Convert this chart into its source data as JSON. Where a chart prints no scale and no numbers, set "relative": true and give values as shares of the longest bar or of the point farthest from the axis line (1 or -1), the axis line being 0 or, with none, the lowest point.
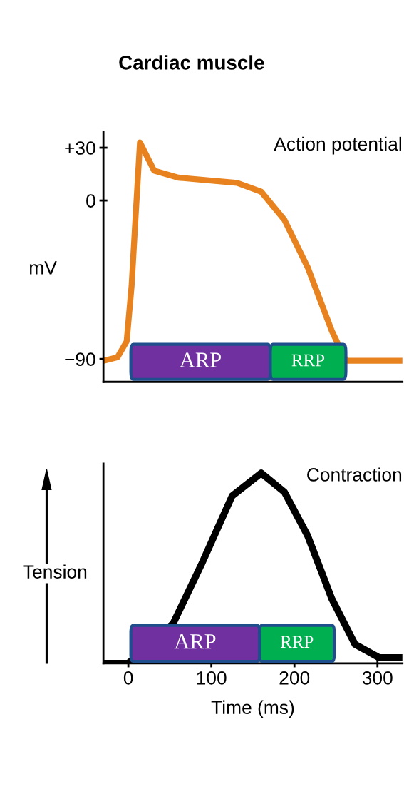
{
  "chart_data": [
    {
      "type": "line",
      "title": "Cardiac muscle",
      "subtitle": "Action potential",
      "ylabel": "mV",
      "x": [
        -30,
        -13,
        -2,
        4,
        9,
        14,
        31,
        60,
        131,
        160,
        188,
        216,
        245,
        262,
        330
      ],
      "series": [
        {
          "color": "#e8821e",
          "values": [
            -91,
            -89,
            -80,
            -48,
            -7,
            33,
            17,
            13,
            10,
            5,
            -11,
            -38,
            -74,
            -91,
            -91
          ]
        }
      ],
      "xlim": [
        -30,
        330
      ],
      "ylim": [
        -103,
        39
      ],
      "yticks": [
        {
          "value": 30,
          "label": "+30"
        },
        0,
        {
          "value": -90,
          "label": "−90"
        }
      ],
      "tick_labels": "y",
      "grid": false,
      "legend": false,
      "marker": "none",
      "line_style": "solid",
      "bands": [
        {
          "axis": "x",
          "from": 3,
          "to": 171,
          "label": "ARP",
          "color": "#7030a0"
        },
        {
          "axis": "x",
          "from": 171,
          "to": 262,
          "label": "RRP",
          "color": "#00b050"
        }
      ]
    },
    {
      "type": "line",
      "subtitle": "Contraction",
      "ylabel": "Tension",
      "xlabel": "Time (ms)",
      "relative": true,
      "x": [
        -30,
        0,
        54,
        88,
        125,
        160,
        188,
        216,
        245,
        273,
        302,
        330
      ],
      "series": [
        {
          "color": "#000000",
          "values": [
            0,
            0,
            0.21,
            0.52,
            0.88,
            1,
            0.9,
            0.67,
            0.34,
            0.1,
            0.03,
            0.03
          ]
        }
      ],
      "xlim": [
        -30,
        330
      ],
      "xticks": [
        0,
        100,
        200,
        300
      ],
      "tick_labels": "x",
      "grid": false,
      "legend": false,
      "marker": "none",
      "line_style": "solid",
      "bands": [
        {
          "axis": "x",
          "from": 3,
          "to": 158,
          "label": "ARP",
          "color": "#7030a0"
        },
        {
          "axis": "x",
          "from": 158,
          "to": 248,
          "label": "RRP",
          "color": "#00b050"
        }
      ]
    }
  ]
}
